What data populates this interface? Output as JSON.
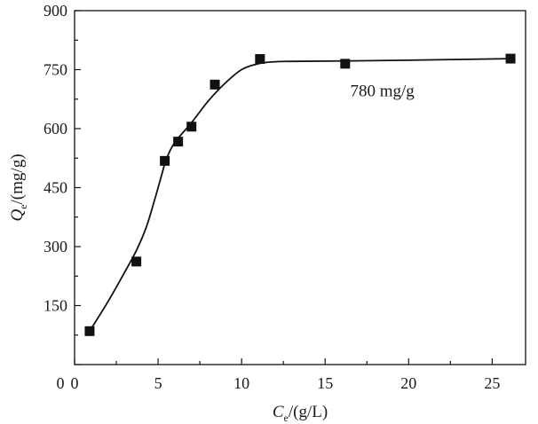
{
  "chart_data": {
    "type": "scatter",
    "xlabel": {
      "main": "C",
      "sub": "e",
      "unit": "/(g/L)"
    },
    "ylabel": {
      "main": "Q",
      "sub": "e",
      "unit": "/(mg/g)"
    },
    "xlim": [
      0,
      27
    ],
    "ylim": [
      0,
      900
    ],
    "xticks": [
      0,
      5,
      10,
      15,
      20,
      25
    ],
    "yticks": [
      150,
      300,
      450,
      600,
      750,
      900
    ],
    "y_origin_label": "0",
    "grid": false,
    "legend": "none",
    "series": [
      {
        "marker": "square",
        "color": "#111111",
        "x": [
          0.9,
          3.7,
          5.4,
          6.2,
          7.0,
          8.4,
          11.1,
          16.2,
          26.1
        ],
        "y": [
          85,
          262,
          518,
          567,
          605,
          712,
          777,
          765,
          778
        ]
      }
    ],
    "fit_curve": {
      "color": "#111111",
      "x": [
        0.9,
        2.0,
        3.0,
        3.7,
        4.3,
        4.8,
        5.2,
        5.5,
        6.0,
        7.0,
        8.0,
        9.0,
        10.0,
        11.0,
        12.0,
        13.0,
        16.0,
        20.0,
        26.1
      ],
      "y": [
        85,
        160,
        235,
        290,
        350,
        420,
        480,
        523,
        565,
        615,
        670,
        715,
        750,
        765,
        770,
        771,
        772,
        774,
        778
      ]
    },
    "annotation": {
      "text": "780 mg/g",
      "x": 16.5,
      "y": 700
    }
  }
}
